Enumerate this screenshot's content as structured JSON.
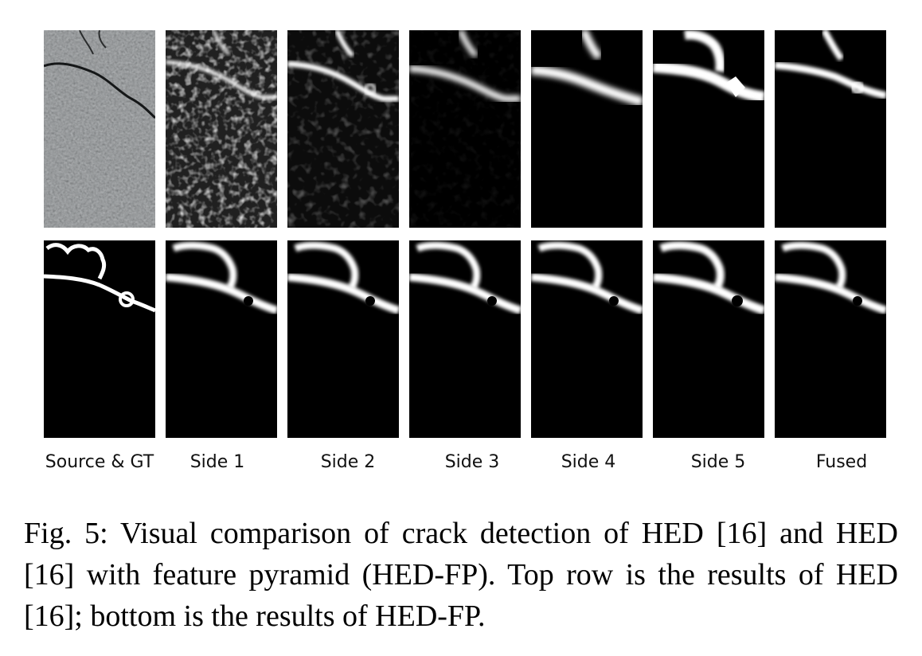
{
  "figure": {
    "columns": [
      "Source & GT",
      "Side 1",
      "Side 2",
      "Side 3",
      "Side 4",
      "Side 5",
      "Fused"
    ],
    "rows": [
      "HED",
      "HED-FP"
    ]
  },
  "caption": "Fig. 5: Visual comparison of crack detection of HED [16] and HED [16] with feature pyramid (HED-FP). Top row is the results of HED [16]; bottom is the results of HED-FP."
}
